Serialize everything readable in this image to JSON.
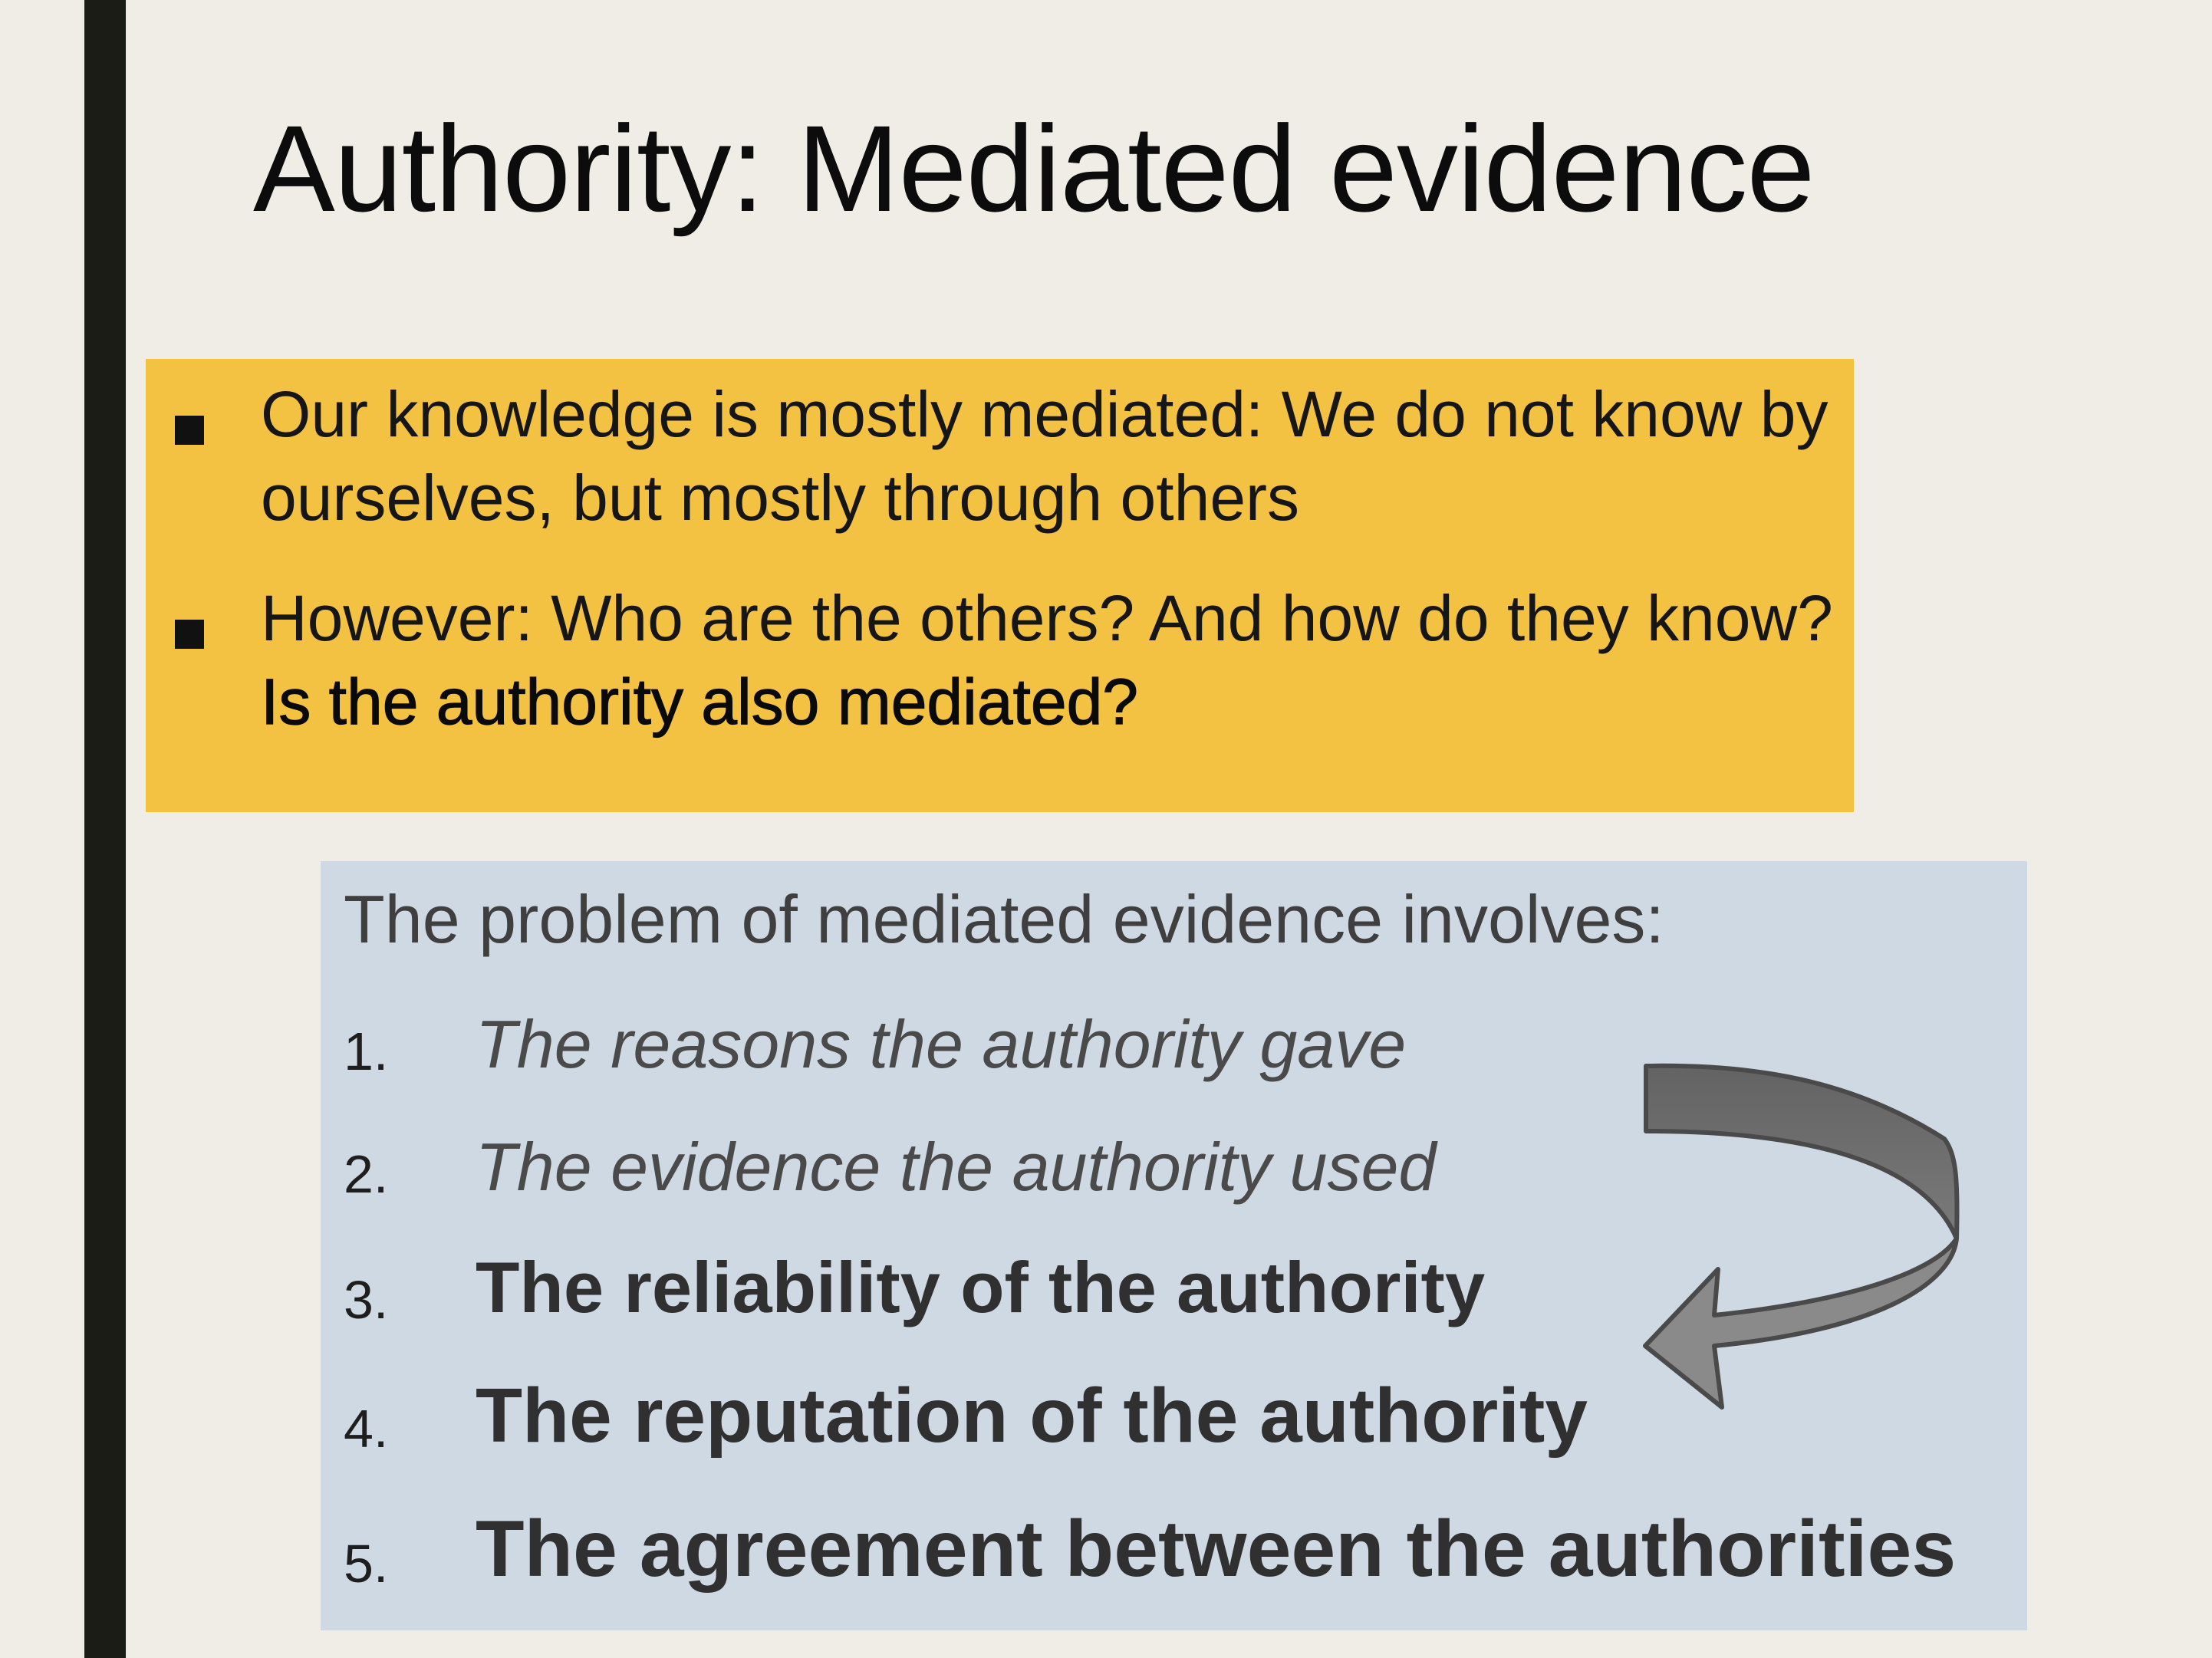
{
  "slide": {
    "title": "Authority: Mediated evidence",
    "bullets": [
      {
        "text": "Our knowledge is mostly mediated: We do not know by  ourselves, but mostly through others",
        "emphasis": ""
      },
      {
        "text": "However: Who are the others? And how do they know? ",
        "emphasis": "Is the authority also mediated?"
      }
    ],
    "problem": {
      "intro": "The problem of mediated evidence involves:",
      "items": [
        {
          "number": "1.",
          "text": "The reasons the authority gave",
          "style": "italic"
        },
        {
          "number": "2.",
          "text": "The evidence the authority used",
          "style": "italic"
        },
        {
          "number": "3.",
          "text": "The reliability of the authority",
          "style": "bold"
        },
        {
          "number": "4.",
          "text": "The reputation of the authority",
          "style": "bold"
        },
        {
          "number": "5.",
          "text": "The agreement between the authorities",
          "style": "bold"
        }
      ]
    },
    "colors": {
      "background": "#efede6",
      "accent_bar": "#1c1c17",
      "orange_box": "#f4c242",
      "blue_box": "#cfd9e3",
      "arrow": "#6e6e6e"
    },
    "icons": {
      "bullet": "square-bullet-icon",
      "arrow": "curved-arrow-icon"
    }
  }
}
